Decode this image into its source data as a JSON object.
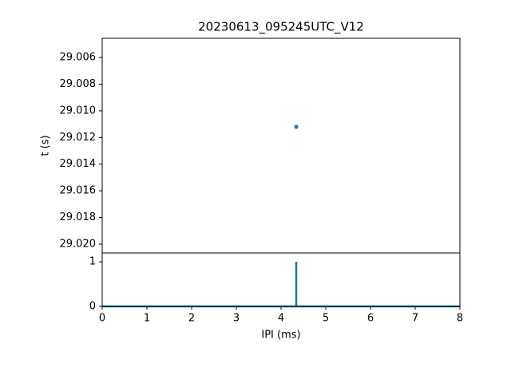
{
  "chart_data": [
    {
      "type": "scatter",
      "title": "20230613_095245UTC_V12",
      "ylabel": "t (s)",
      "x": [
        4.34
      ],
      "values": [
        29.0112
      ],
      "color": "#1f77b4",
      "xlim": [
        0,
        8
      ],
      "ylim": [
        29.02066,
        29.00456
      ],
      "yticks": [
        29.006,
        29.008,
        {
          "value": 29.01,
          "label": "29.010"
        },
        29.012,
        29.014,
        29.016,
        29.018,
        {
          "value": 29.02,
          "label": "29.020"
        }
      ]
    },
    {
      "type": "line",
      "xlabel": "IPI (ms)",
      "x": [
        0,
        4.34,
        4.34,
        4.34,
        8
      ],
      "values": [
        0,
        0,
        1,
        0,
        0
      ],
      "color": "#1f77b4",
      "xlim": [
        0,
        8
      ],
      "ylim": [
        0,
        1.2
      ],
      "xticks": [
        0,
        1,
        2,
        3,
        4,
        5,
        6,
        7,
        8
      ],
      "yticks": [
        0,
        1
      ]
    }
  ]
}
